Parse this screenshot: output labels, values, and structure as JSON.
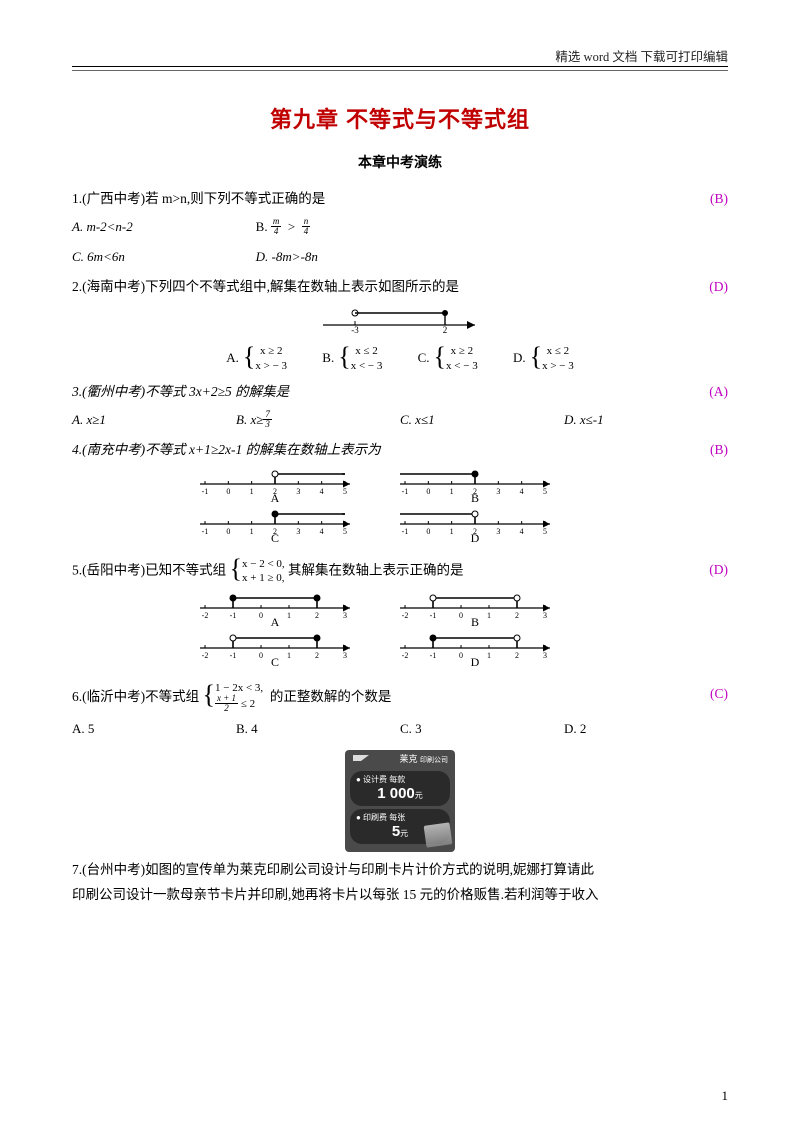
{
  "header": {
    "right": "精选 word 文档 下载可打印编辑"
  },
  "title": "第九章 不等式与不等式组",
  "subtitle": "本章中考演练",
  "q1": {
    "text": "1.(广西中考)若 m>n,则下列不等式正确的是",
    "answer": "(B)",
    "opts": {
      "a": "A. m-2<n-2",
      "b_prefix": "B.",
      "c": "C. 6m<6n",
      "d": "D. -8m>-8n"
    }
  },
  "q2": {
    "text": "2.(海南中考)下列四个不等式组中,解集在数轴上表示如图所示的是",
    "answer": "(D)",
    "numline": {
      "xmin": -4,
      "xmax": 3,
      "a": -3,
      "b": 2
    },
    "opts": {
      "a": {
        "l1": "x ≥ 2",
        "l2": "x > − 3"
      },
      "b": {
        "l1": "x ≤ 2",
        "l2": "x < − 3"
      },
      "c": {
        "l1": "x ≥ 2",
        "l2": "x < − 3"
      },
      "d": {
        "l1": "x ≤ 2",
        "l2": "x > − 3"
      }
    }
  },
  "q3": {
    "text": "3.(衢州中考)不等式 3x+2≥5 的解集是",
    "answer": "(A)",
    "opts": {
      "a": "A. x≥1",
      "b_prefix": "B. x≥",
      "c": "C. x≤1",
      "d": "D. x≤-1"
    }
  },
  "q4": {
    "text": "4.(南充中考)不等式 x+1≥2x-1 的解集在数轴上表示为",
    "answer": "(B)",
    "ticks": [
      "-1",
      "0",
      "1",
      "2",
      "3",
      "4",
      "5"
    ]
  },
  "q5": {
    "text_pre": "5.(岳阳中考)已知不等式组",
    "sys": {
      "l1": "x − 2 < 0,",
      "l2": "x + 1 ≥ 0,"
    },
    "text_post": "其解集在数轴上表示正确的是",
    "answer": "(D)",
    "ticks": [
      "-2",
      "-1",
      "0",
      "1",
      "2",
      "3"
    ]
  },
  "q6": {
    "text_pre": "6.(临沂中考)不等式组",
    "sys": {
      "l1": "1 − 2x < 3,",
      "l2_frac_num": "x + 1",
      "l2_frac_den": "2",
      "l2_rest": " ≤ 2"
    },
    "text_post": "的正整数解的个数是",
    "answer": "(C)",
    "opts": {
      "a": "A. 5",
      "b": "B. 4",
      "c": "C. 3",
      "d": "D. 2"
    }
  },
  "q7": {
    "poster": {
      "company_l1": "莱克",
      "company_l2": "印刷公司",
      "design_label": "● 设计费 每款",
      "design_price": "1 000",
      "design_unit": "元",
      "print_label": "● 印刷费 每张",
      "print_price": "5",
      "print_unit": "元"
    },
    "line1": "7.(台州中考)如图的宣传单为莱克印刷公司设计与印刷卡片计价方式的说明,妮娜打算请此",
    "line2": "印刷公司设计一款母亲节卡片并印刷,她再将卡片以每张 15 元的价格贩售.若利润等于收入"
  },
  "pageNum": "1",
  "styles": {
    "answer_color": "#c000c0",
    "title_color": "#c00000"
  }
}
